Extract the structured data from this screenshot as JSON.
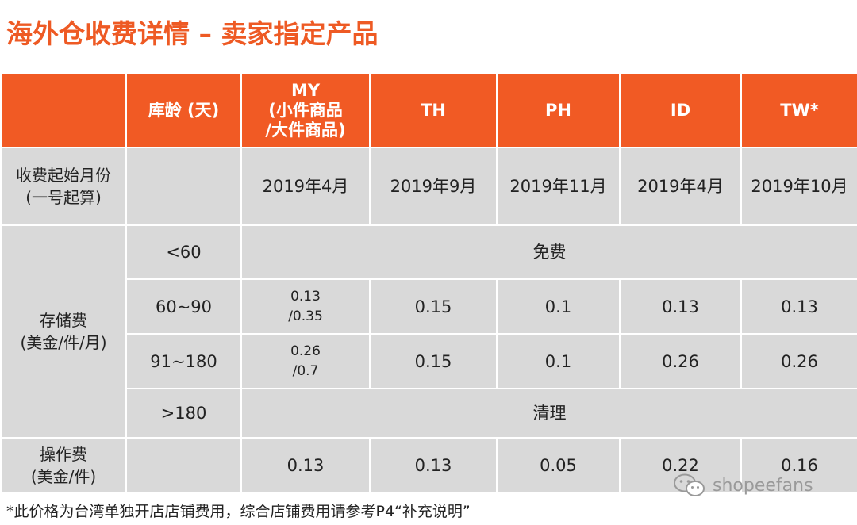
{
  "title": "海外仓收费详情 – 卖家指定产品",
  "header": {
    "age": "库龄 (天)",
    "my_line1": "MY",
    "my_line2": "(小件商品",
    "my_line3": "/大件商品)",
    "th": "TH",
    "ph": "PH",
    "id": "ID",
    "tw": "TW*"
  },
  "start_month": {
    "label_line1": "收费起始月份",
    "label_line2": "(一号起算)",
    "my": "2019年4月",
    "th": "2019年9月",
    "ph": "2019年11月",
    "id": "2019年4月",
    "tw": "2019年10月"
  },
  "storage": {
    "label_line1": "存储费",
    "label_line2": "(美金/件/月)",
    "rows": [
      {
        "age": "<60",
        "merged": "免费"
      },
      {
        "age": "60~90",
        "my_line1": "0.13",
        "my_line2": "/0.35",
        "th": "0.15",
        "ph": "0.1",
        "id": "0.13",
        "tw": "0.13"
      },
      {
        "age": "91~180",
        "my_line1": "0.26",
        "my_line2": "/0.7",
        "th": "0.15",
        "ph": "0.1",
        "id": "0.26",
        "tw": "0.26"
      },
      {
        "age": ">180",
        "merged": "清理"
      }
    ]
  },
  "operation": {
    "label_line1": "操作费",
    "label_line2": "(美金/件)",
    "my": "0.13",
    "th": "0.13",
    "ph": "0.05",
    "id": "0.22",
    "tw": "0.16"
  },
  "footnote": "*此价格为台湾单独开店店铺费用，综合店铺费用请参考P4“补充说明”",
  "watermark": {
    "text": "shopeefans",
    "icon": "wechat-icon"
  },
  "colors": {
    "accent": "#f15a24",
    "title": "#ee5a24",
    "cell_bg": "#d9d9d9"
  }
}
